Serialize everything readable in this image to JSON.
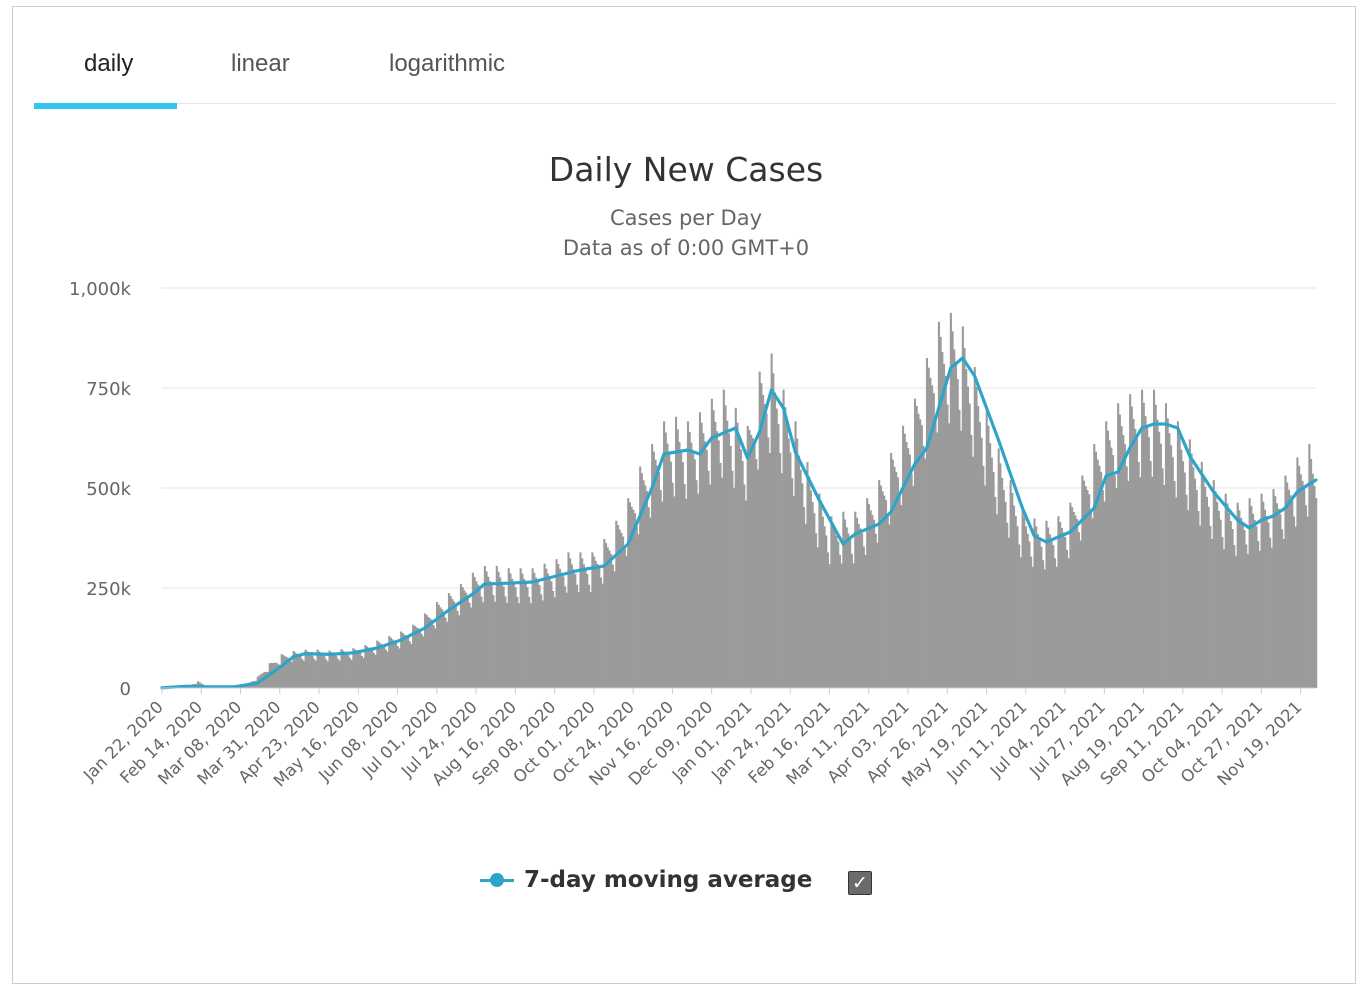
{
  "tabs": [
    {
      "label": "daily",
      "active": true
    },
    {
      "label": "linear",
      "active": false
    },
    {
      "label": "logarithmic",
      "active": false
    }
  ],
  "colors": {
    "bar": "#9b9b9b",
    "line": "#2ea4c9",
    "tab_underline": "#32c5f0",
    "grid": "#e6e6e6"
  },
  "legend": {
    "label": "7-day moving average",
    "checked": true,
    "check_icon": "checkmark-icon"
  },
  "chart_data": {
    "type": "bar",
    "title": "Daily New Cases",
    "subtitle": [
      "Cases per Day",
      "Data as of 0:00 GMT+0"
    ],
    "xlabel": "",
    "ylabel": "",
    "ylim": [
      0,
      1000000
    ],
    "y_ticks": [
      {
        "value": 0,
        "label": "0"
      },
      {
        "value": 250000,
        "label": "250k"
      },
      {
        "value": 500000,
        "label": "500k"
      },
      {
        "value": 750000,
        "label": "750k"
      },
      {
        "value": 1000000,
        "label": "1,000k"
      }
    ],
    "x_range": [
      "Jan 22, 2020",
      "Nov 28, 2021"
    ],
    "x_ticks": [
      "Jan 22, 2020",
      "Feb 14, 2020",
      "Mar 08, 2020",
      "Mar 31, 2020",
      "Apr 23, 2020",
      "May 16, 2020",
      "Jun 08, 2020",
      "Jul 01, 2020",
      "Jul 24, 2020",
      "Aug 16, 2020",
      "Sep 08, 2020",
      "Oct 01, 2020",
      "Oct 24, 2020",
      "Nov 16, 2020",
      "Dec 09, 2020",
      "Jan 01, 2021",
      "Jan 24, 2021",
      "Feb 16, 2021",
      "Mar 11, 2021",
      "Apr 03, 2021",
      "Apr 26, 2021",
      "May 19, 2021",
      "Jun 11, 2021",
      "Jul 04, 2021",
      "Jul 27, 2021",
      "Aug 19, 2021",
      "Sep 11, 2021",
      "Oct 04, 2021",
      "Oct 27, 2021",
      "Nov 19, 2021"
    ],
    "grid": true,
    "legend_position": "bottom-center",
    "series": [
      {
        "type": "bar",
        "note": "daily new cases, weekly sampled (date, cases)",
        "points": [
          [
            "2020-01-22",
            600
          ],
          [
            "2020-01-29",
            2000
          ],
          [
            "2020-02-05",
            3500
          ],
          [
            "2020-02-12",
            15000
          ],
          [
            "2020-02-19",
            1000
          ],
          [
            "2020-02-26",
            1500
          ],
          [
            "2020-03-04",
            2500
          ],
          [
            "2020-03-11",
            8000
          ],
          [
            "2020-03-18",
            25000
          ],
          [
            "2020-03-25",
            55000
          ],
          [
            "2020-04-01",
            75000
          ],
          [
            "2020-04-08",
            82000
          ],
          [
            "2020-04-15",
            85000
          ],
          [
            "2020-04-22",
            85000
          ],
          [
            "2020-04-29",
            83000
          ],
          [
            "2020-05-06",
            86000
          ],
          [
            "2020-05-13",
            88000
          ],
          [
            "2020-05-20",
            95000
          ],
          [
            "2020-05-27",
            105000
          ],
          [
            "2020-06-03",
            115000
          ],
          [
            "2020-06-10",
            125000
          ],
          [
            "2020-06-17",
            140000
          ],
          [
            "2020-06-24",
            165000
          ],
          [
            "2020-07-01",
            190000
          ],
          [
            "2020-07-08",
            210000
          ],
          [
            "2020-07-15",
            230000
          ],
          [
            "2020-07-22",
            255000
          ],
          [
            "2020-07-29",
            270000
          ],
          [
            "2020-08-05",
            270000
          ],
          [
            "2020-08-12",
            265000
          ],
          [
            "2020-08-19",
            265000
          ],
          [
            "2020-08-26",
            265000
          ],
          [
            "2020-09-02",
            275000
          ],
          [
            "2020-09-09",
            285000
          ],
          [
            "2020-09-16",
            300000
          ],
          [
            "2020-09-23",
            300000
          ],
          [
            "2020-09-30",
            300000
          ],
          [
            "2020-10-07",
            330000
          ],
          [
            "2020-10-14",
            370000
          ],
          [
            "2020-10-21",
            420000
          ],
          [
            "2020-10-28",
            490000
          ],
          [
            "2020-11-04",
            540000
          ],
          [
            "2020-11-11",
            590000
          ],
          [
            "2020-11-18",
            600000
          ],
          [
            "2020-11-25",
            590000
          ],
          [
            "2020-12-02",
            610000
          ],
          [
            "2020-12-09",
            640000
          ],
          [
            "2020-12-16",
            660000
          ],
          [
            "2020-12-23",
            620000
          ],
          [
            "2020-12-30",
            580000
          ],
          [
            "2021-01-06",
            700000
          ],
          [
            "2021-01-13",
            740000
          ],
          [
            "2021-01-20",
            660000
          ],
          [
            "2021-01-27",
            590000
          ],
          [
            "2021-02-03",
            500000
          ],
          [
            "2021-02-10",
            430000
          ],
          [
            "2021-02-17",
            380000
          ],
          [
            "2021-02-24",
            390000
          ],
          [
            "2021-03-03",
            390000
          ],
          [
            "2021-03-10",
            420000
          ],
          [
            "2021-03-17",
            460000
          ],
          [
            "2021-03-24",
            520000
          ],
          [
            "2021-03-31",
            580000
          ],
          [
            "2021-04-07",
            640000
          ],
          [
            "2021-04-14",
            730000
          ],
          [
            "2021-04-21",
            810000
          ],
          [
            "2021-04-28",
            830000
          ],
          [
            "2021-05-05",
            800000
          ],
          [
            "2021-05-12",
            710000
          ],
          [
            "2021-05-19",
            620000
          ],
          [
            "2021-05-26",
            530000
          ],
          [
            "2021-06-02",
            460000
          ],
          [
            "2021-06-09",
            400000
          ],
          [
            "2021-06-16",
            375000
          ],
          [
            "2021-06-23",
            370000
          ],
          [
            "2021-06-30",
            380000
          ],
          [
            "2021-07-07",
            410000
          ],
          [
            "2021-07-14",
            470000
          ],
          [
            "2021-07-21",
            540000
          ],
          [
            "2021-07-28",
            590000
          ],
          [
            "2021-08-04",
            630000
          ],
          [
            "2021-08-11",
            650000
          ],
          [
            "2021-08-18",
            660000
          ],
          [
            "2021-08-25",
            660000
          ],
          [
            "2021-09-01",
            630000
          ],
          [
            "2021-09-08",
            590000
          ],
          [
            "2021-09-15",
            550000
          ],
          [
            "2021-09-22",
            500000
          ],
          [
            "2021-09-29",
            460000
          ],
          [
            "2021-10-06",
            430000
          ],
          [
            "2021-10-13",
            410000
          ],
          [
            "2021-10-20",
            420000
          ],
          [
            "2021-10-27",
            430000
          ],
          [
            "2021-11-03",
            440000
          ],
          [
            "2021-11-10",
            470000
          ],
          [
            "2021-11-17",
            510000
          ],
          [
            "2021-11-24",
            540000
          ],
          [
            "2021-11-28",
            500000
          ]
        ]
      },
      {
        "type": "line",
        "name": "7-day moving average",
        "points": [
          [
            "2020-01-22",
            500
          ],
          [
            "2020-02-05",
            4000
          ],
          [
            "2020-02-19",
            3000
          ],
          [
            "2020-03-04",
            3000
          ],
          [
            "2020-03-18",
            12000
          ],
          [
            "2020-04-01",
            55000
          ],
          [
            "2020-04-08",
            78000
          ],
          [
            "2020-04-15",
            86000
          ],
          [
            "2020-04-29",
            84000
          ],
          [
            "2020-05-13",
            88000
          ],
          [
            "2020-05-27",
            100000
          ],
          [
            "2020-06-10",
            120000
          ],
          [
            "2020-06-24",
            150000
          ],
          [
            "2020-07-08",
            195000
          ],
          [
            "2020-07-22",
            235000
          ],
          [
            "2020-07-29",
            260000
          ],
          [
            "2020-08-12",
            262000
          ],
          [
            "2020-08-26",
            265000
          ],
          [
            "2020-09-09",
            280000
          ],
          [
            "2020-09-23",
            295000
          ],
          [
            "2020-10-07",
            305000
          ],
          [
            "2020-10-21",
            360000
          ],
          [
            "2020-11-04",
            500000
          ],
          [
            "2020-11-11",
            585000
          ],
          [
            "2020-11-25",
            595000
          ],
          [
            "2020-12-02",
            585000
          ],
          [
            "2020-12-09",
            625000
          ],
          [
            "2020-12-23",
            650000
          ],
          [
            "2020-12-30",
            575000
          ],
          [
            "2021-01-06",
            640000
          ],
          [
            "2021-01-13",
            745000
          ],
          [
            "2021-01-20",
            700000
          ],
          [
            "2021-01-27",
            590000
          ],
          [
            "2021-02-10",
            470000
          ],
          [
            "2021-02-24",
            360000
          ],
          [
            "2021-03-03",
            385000
          ],
          [
            "2021-03-17",
            410000
          ],
          [
            "2021-03-24",
            440000
          ],
          [
            "2021-04-07",
            560000
          ],
          [
            "2021-04-14",
            600000
          ],
          [
            "2021-04-28",
            800000
          ],
          [
            "2021-05-05",
            825000
          ],
          [
            "2021-05-12",
            780000
          ],
          [
            "2021-05-26",
            620000
          ],
          [
            "2021-06-09",
            450000
          ],
          [
            "2021-06-16",
            380000
          ],
          [
            "2021-06-23",
            365000
          ],
          [
            "2021-07-07",
            390000
          ],
          [
            "2021-07-21",
            450000
          ],
          [
            "2021-07-28",
            530000
          ],
          [
            "2021-08-04",
            540000
          ],
          [
            "2021-08-11",
            600000
          ],
          [
            "2021-08-18",
            650000
          ],
          [
            "2021-08-25",
            660000
          ],
          [
            "2021-09-01",
            660000
          ],
          [
            "2021-09-08",
            650000
          ],
          [
            "2021-09-15",
            580000
          ],
          [
            "2021-09-29",
            490000
          ],
          [
            "2021-10-13",
            420000
          ],
          [
            "2021-10-20",
            400000
          ],
          [
            "2021-10-27",
            420000
          ],
          [
            "2021-11-03",
            430000
          ],
          [
            "2021-11-10",
            450000
          ],
          [
            "2021-11-17",
            490000
          ],
          [
            "2021-11-24",
            510000
          ],
          [
            "2021-11-28",
            520000
          ]
        ]
      }
    ]
  }
}
